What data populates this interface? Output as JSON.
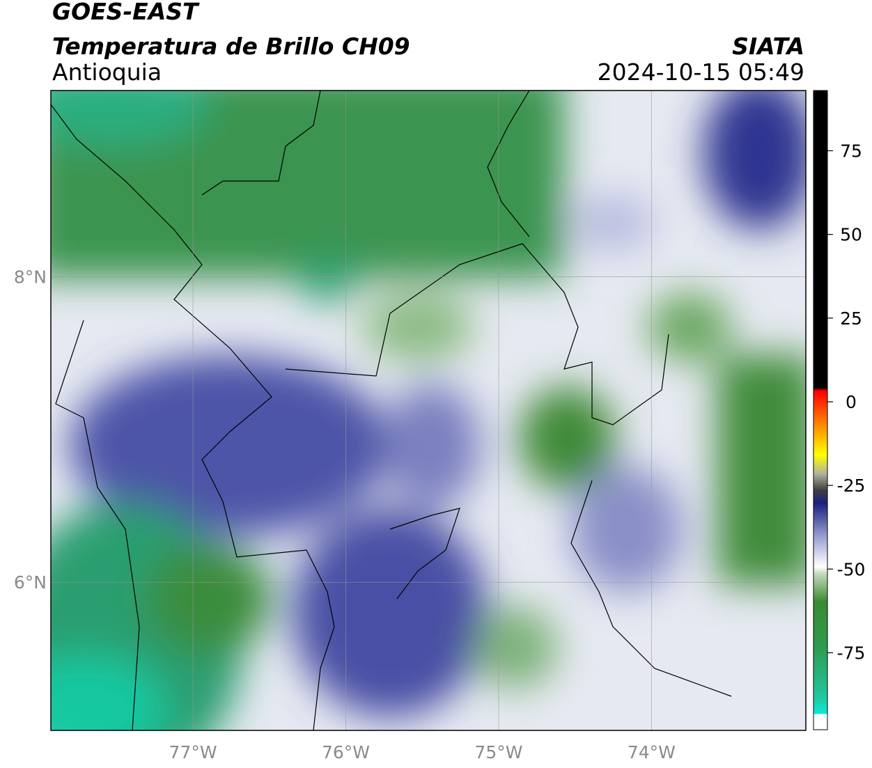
{
  "header": {
    "title": "GOES-EAST",
    "subtitle": "Temperatura de Brillo CH09",
    "source": "SIATA",
    "region": "Antioquia",
    "datetime": "2024-10-15 05:49"
  },
  "map": {
    "lon_range": [
      -77.93,
      -72.99
    ],
    "lat_range": [
      5.03,
      9.22
    ],
    "lon_ticks": [
      {
        "value": -77,
        "label": "77°W"
      },
      {
        "value": -76,
        "label": "76°W"
      },
      {
        "value": -75,
        "label": "75°W"
      },
      {
        "value": -74,
        "label": "74°W"
      }
    ],
    "lat_ticks": [
      {
        "value": 8,
        "label": "8°N"
      },
      {
        "value": 6,
        "label": "6°N"
      }
    ]
  },
  "colorbar": {
    "lim": [
      -98,
      93
    ],
    "ticks": [
      75,
      50,
      25,
      0,
      -25,
      -50,
      -75
    ]
  }
}
